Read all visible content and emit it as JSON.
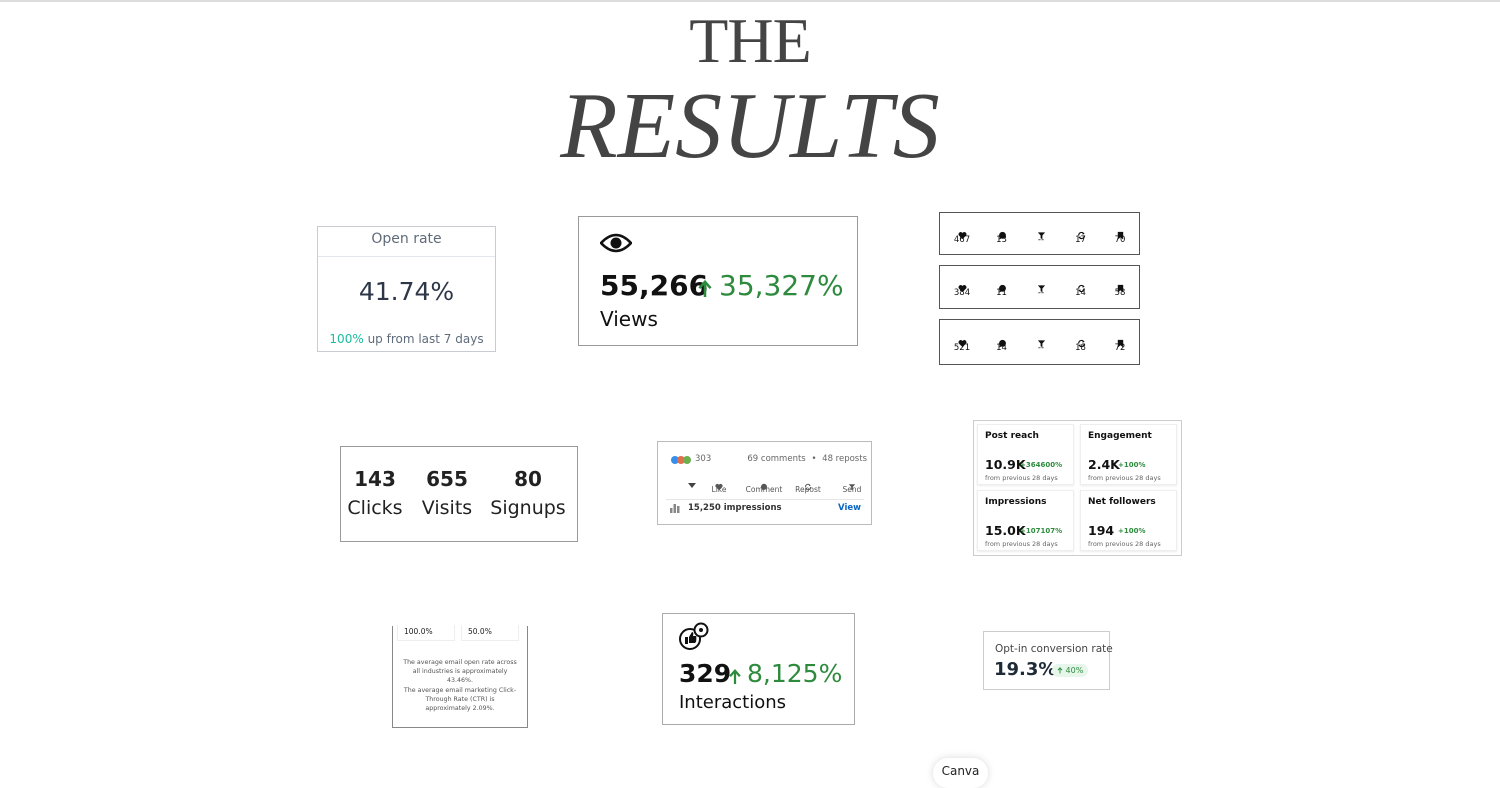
{
  "header": {
    "line1": "THE",
    "line2": "RESULTS"
  },
  "open_rate": {
    "title": "Open rate",
    "value": "41.74%",
    "change": "100%",
    "change_text": "up from last 7 days"
  },
  "views": {
    "value": "55,266",
    "change": "35,327%",
    "label": "Views"
  },
  "post_stats": {
    "rows": [
      [
        "467",
        "13",
        "--",
        "17",
        "70"
      ],
      [
        "384",
        "11",
        "--",
        "14",
        "58"
      ],
      [
        "521",
        "14",
        "--",
        "18",
        "72"
      ]
    ]
  },
  "funnel": {
    "items": [
      {
        "value": "143",
        "label": "Clicks"
      },
      {
        "value": "655",
        "label": "Visits"
      },
      {
        "value": "80",
        "label": "Signups"
      }
    ]
  },
  "linkedin": {
    "reactions": "303",
    "comments": "69 comments",
    "separator": "•",
    "reposts": "48 reposts",
    "actions": [
      "Like",
      "Comment",
      "Repost",
      "Send"
    ],
    "impressions": "15,250 impressions",
    "view": "View"
  },
  "insights": {
    "cells": [
      {
        "title": "Post reach",
        "value": "10.9K",
        "change": "+364600%",
        "note": "from previous 28 days"
      },
      {
        "title": "Engagement",
        "value": "2.4K",
        "change": "+100%",
        "note": "from previous 28 days"
      },
      {
        "title": "Impressions",
        "value": "15.0K",
        "change": "+107107%",
        "note": "from previous 28 days"
      },
      {
        "title": "Net followers",
        "value": "194",
        "change": "+100%",
        "note": "from previous 28 days"
      }
    ]
  },
  "email_note": {
    "rates": [
      "100.0%",
      "50.0%"
    ],
    "paragraphs": [
      "The average email open rate across all industries is approximately 43.46%.",
      "The average email marketing Click-Through Rate (CTR) is approximately 2.09%."
    ]
  },
  "interactions": {
    "value": "329",
    "change": "8,125%",
    "label": "Interactions"
  },
  "optin": {
    "title": "Opt-in conversion rate",
    "value": "19.3%",
    "change": "40%"
  },
  "footer": {
    "badge": "Canva"
  }
}
